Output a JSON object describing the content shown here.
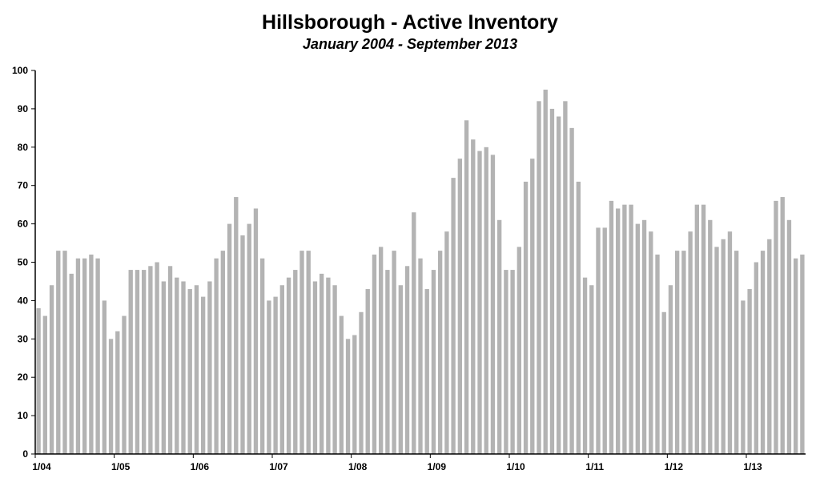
{
  "chart_data": {
    "type": "bar",
    "title": "Hillsborough - Active Inventory",
    "subtitle": "January 2004 - September 2013",
    "xlabel": "",
    "ylabel": "",
    "ylim": [
      0,
      100
    ],
    "yticks": [
      0,
      10,
      20,
      30,
      40,
      50,
      60,
      70,
      80,
      90,
      100
    ],
    "xtick_labels": [
      "1/04",
      "1/05",
      "1/06",
      "1/07",
      "1/08",
      "1/09",
      "1/10",
      "1/11",
      "1/12",
      "1/13"
    ],
    "xtick_positions": [
      0,
      12,
      24,
      36,
      48,
      60,
      72,
      84,
      96,
      108
    ],
    "bar_color": "#b3b3b3",
    "grid": false,
    "values": [
      38,
      36,
      44,
      53,
      53,
      47,
      51,
      51,
      52,
      51,
      40,
      30,
      32,
      36,
      48,
      48,
      48,
      49,
      50,
      45,
      49,
      46,
      45,
      43,
      44,
      41,
      45,
      51,
      53,
      60,
      67,
      57,
      60,
      64,
      51,
      40,
      41,
      44,
      46,
      48,
      53,
      53,
      45,
      47,
      46,
      44,
      36,
      30,
      31,
      37,
      43,
      52,
      54,
      48,
      53,
      44,
      49,
      63,
      51,
      43,
      48,
      53,
      58,
      72,
      77,
      87,
      82,
      79,
      80,
      78,
      61,
      48,
      48,
      54,
      71,
      77,
      92,
      95,
      90,
      88,
      92,
      85,
      71,
      46,
      44,
      59,
      59,
      66,
      64,
      65,
      65,
      60,
      61,
      58,
      52,
      37,
      44,
      53,
      53,
      58,
      65,
      65,
      61,
      54,
      56,
      58,
      53,
      40,
      43,
      50,
      53,
      56,
      66,
      67,
      61,
      51,
      52
    ]
  }
}
